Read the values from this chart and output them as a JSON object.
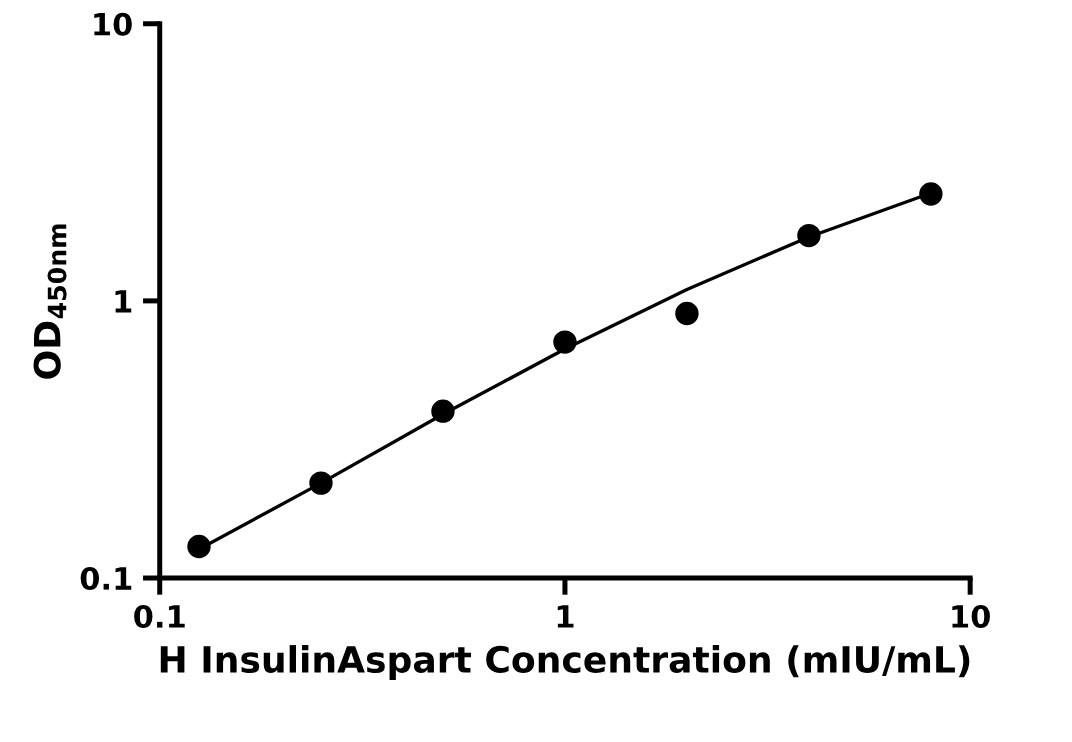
{
  "chart_data": {
    "type": "scatter",
    "xlabel": "H InsulinAspart Concentration (mIU/mL)",
    "ylabel": "OD$_{450nm}$",
    "log": "xy",
    "grid": false,
    "legend": false,
    "xlim": [
      0.1,
      10
    ],
    "ylim": [
      0.1,
      10
    ],
    "xticks": [
      0.1,
      1,
      10
    ],
    "yticks": [
      0.1,
      1,
      10
    ],
    "series": [
      {
        "color": "#000000",
        "marker": "circle",
        "x": [
          0.125,
          0.25,
          0.5,
          1,
          2,
          4,
          8
        ],
        "values": [
          0.13,
          0.22,
          0.4,
          0.71,
          0.9,
          1.72,
          2.43
        ]
      },
      {
        "type": "line",
        "color": "#000000",
        "marker": "none",
        "line_style": "solid",
        "x": [
          0.125,
          0.25,
          0.5,
          1,
          2,
          4,
          8
        ],
        "values": [
          0.127,
          0.22,
          0.39,
          0.67,
          1.1,
          1.7,
          2.45
        ]
      }
    ]
  }
}
